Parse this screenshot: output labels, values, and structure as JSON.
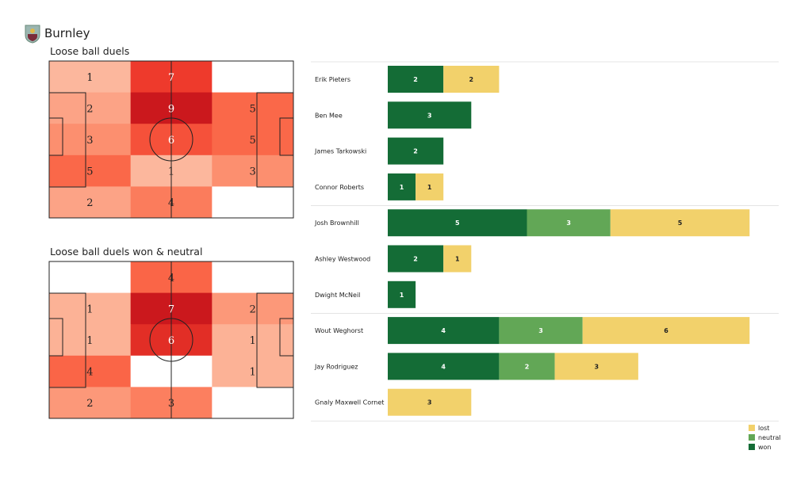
{
  "header": {
    "team": "Burnley",
    "logo_icon": "burnley-crest-icon"
  },
  "chart_data": [
    {
      "type": "heatmap",
      "title": "Loose ball duels",
      "rows": [
        [
          1,
          7,
          0
        ],
        [
          2,
          9,
          5
        ],
        [
          3,
          6,
          5
        ],
        [
          5,
          1,
          3
        ],
        [
          2,
          4,
          0
        ]
      ],
      "colormap": "Reds"
    },
    {
      "type": "heatmap",
      "title": "Loose ball duels won & neutral",
      "rows": [
        [
          0,
          4,
          0
        ],
        [
          1,
          7,
          2
        ],
        [
          1,
          6,
          1
        ],
        [
          4,
          0,
          1
        ],
        [
          2,
          3,
          0
        ]
      ],
      "colormap": "Reds"
    },
    {
      "type": "bar",
      "orientation": "horizontal",
      "stacked": true,
      "categories": [
        "Erik Pieters",
        "Ben Mee",
        "James  Tarkowski",
        "Connor Roberts",
        "Josh Brownhill",
        "Ashley Westwood",
        "Dwight McNeil",
        "Wout Weghorst",
        "Jay Rodriguez",
        "Gnaly Maxwell Cornet"
      ],
      "groups": [
        4,
        3,
        3
      ],
      "series": [
        {
          "name": "won",
          "color": "#146c36",
          "values": [
            2,
            3,
            2,
            1,
            5,
            2,
            1,
            4,
            4,
            0
          ]
        },
        {
          "name": "neutral",
          "color": "#62a756",
          "values": [
            0,
            0,
            0,
            0,
            3,
            0,
            0,
            3,
            2,
            0
          ]
        },
        {
          "name": "lost",
          "color": "#f2d16b",
          "values": [
            2,
            0,
            0,
            1,
            5,
            1,
            0,
            6,
            3,
            3
          ]
        }
      ],
      "legend": [
        "lost",
        "neutral",
        "won"
      ],
      "legend_placement": "bottom-right"
    }
  ]
}
